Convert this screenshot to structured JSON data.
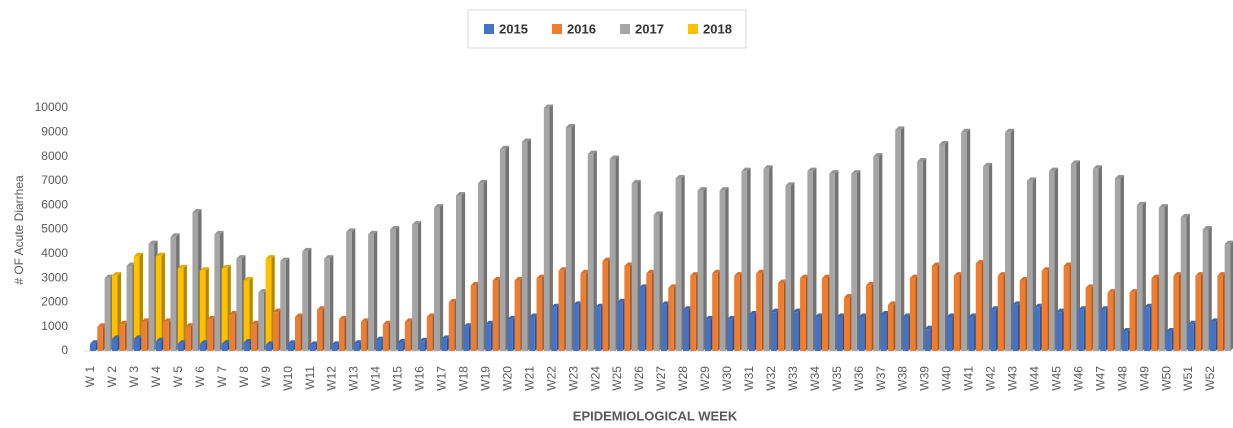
{
  "chart_data": {
    "type": "bar3d",
    "y_label": "# OF Acute Diarrhea",
    "x_label": "EPIDEMIOLOGICAL WEEK",
    "categories": [
      "W 1",
      "W 2",
      "W 3",
      "W 4",
      "W 5",
      "W 6",
      "W 7",
      "W 8",
      "W 9",
      "W10",
      "W11",
      "W12",
      "W13",
      "W14",
      "W15",
      "W16",
      "W17",
      "W18",
      "W19",
      "W20",
      "W21",
      "W22",
      "W23",
      "W24",
      "W25",
      "W26",
      "W27",
      "W28",
      "W29",
      "W30",
      "W31",
      "W32",
      "W33",
      "W34",
      "W35",
      "W36",
      "W37",
      "W38",
      "W39",
      "W40",
      "W41",
      "W42",
      "W43",
      "W44",
      "W45",
      "W46",
      "W47",
      "W48",
      "W49",
      "W50",
      "W51",
      "W52"
    ],
    "series": [
      {
        "name": "2015",
        "color": "#4472c4",
        "values": [
          300,
          500,
          500,
          400,
          300,
          300,
          300,
          350,
          250,
          300,
          250,
          250,
          300,
          450,
          350,
          400,
          500,
          1000,
          1100,
          1300,
          1400,
          1800,
          1900,
          1800,
          2000,
          2600,
          1900,
          1700,
          1300,
          1300,
          1500,
          1600,
          1600,
          1400,
          1400,
          1400,
          1500,
          1400,
          900,
          1400,
          1400,
          1700,
          1900,
          1800,
          1600,
          1700,
          1700,
          800,
          1800,
          800,
          1100,
          1200
        ]
      },
      {
        "name": "2016",
        "color": "#ed7d31",
        "values": [
          1000,
          1100,
          1200,
          1200,
          1000,
          1300,
          1500,
          1100,
          1600,
          1400,
          1700,
          1300,
          1200,
          1100,
          1200,
          1400,
          2000,
          2700,
          2900,
          2900,
          3000,
          3300,
          3200,
          3700,
          3500,
          3200,
          2600,
          3100,
          3200,
          3100,
          3200,
          2800,
          3000,
          3000,
          2200,
          2700,
          1900,
          3000,
          3500,
          3100,
          3600,
          3100,
          2900,
          3300,
          3500,
          2600,
          2400,
          2400,
          3000,
          3100,
          3100,
          3100
        ]
      },
      {
        "name": "2017",
        "color": "#a5a5a5",
        "values": [
          3000,
          3500,
          4400,
          4700,
          5700,
          4800,
          3800,
          2400,
          3700,
          4100,
          3800,
          4900,
          4800,
          5000,
          5200,
          5900,
          6400,
          6900,
          8300,
          8600,
          10000,
          9200,
          8100,
          7900,
          6900,
          5600,
          7100,
          6600,
          6600,
          7400,
          7500,
          6800,
          7400,
          7300,
          7300,
          8000,
          9100,
          7800,
          8500,
          9000,
          7600,
          9000,
          7000,
          7400,
          7700,
          7500,
          7100,
          6000,
          5900,
          5500,
          5000,
          4400
        ]
      },
      {
        "name": "2018",
        "color": "#ffc000",
        "values": [
          3100,
          3900,
          3900,
          3400,
          3300,
          3400,
          2900,
          3800,
          null,
          null,
          null,
          null,
          null,
          null,
          null,
          null,
          null,
          null,
          null,
          null,
          null,
          null,
          null,
          null,
          null,
          null,
          null,
          null,
          null,
          null,
          null,
          null,
          null,
          null,
          null,
          null,
          null,
          null,
          null,
          null,
          null,
          null,
          null,
          null,
          null,
          null,
          null,
          null,
          null,
          null,
          null,
          null
        ]
      }
    ],
    "ylim": [
      0,
      10000
    ],
    "yticks": [
      0,
      1000,
      2000,
      3000,
      4000,
      5000,
      6000,
      7000,
      8000,
      9000,
      10000
    ],
    "legend": "top"
  }
}
